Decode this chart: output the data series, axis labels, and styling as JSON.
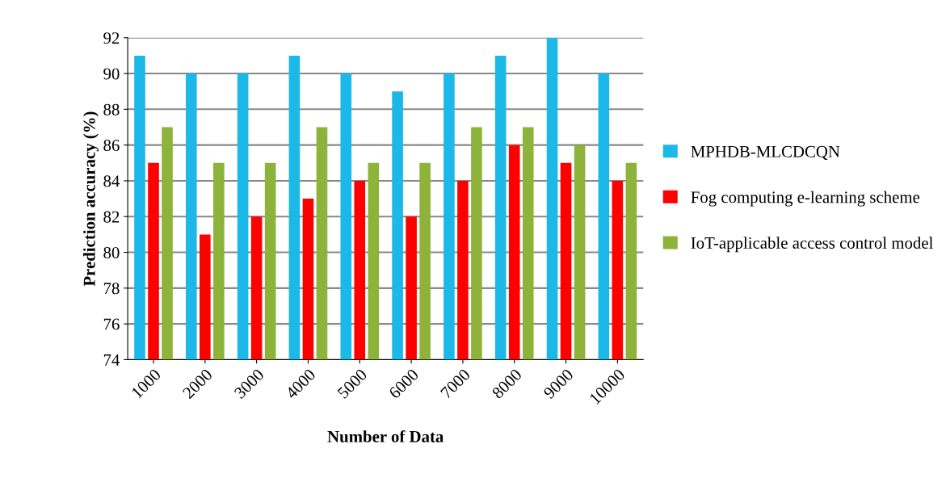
{
  "chart_data": {
    "type": "bar",
    "xlabel": "Number of Data",
    "ylabel": "Prediction accuracy (%)",
    "categories": [
      "1000",
      "2000",
      "3000",
      "4000",
      "5000",
      "6000",
      "7000",
      "8000",
      "9000",
      "10000"
    ],
    "series": [
      {
        "name": "MPHDB-MLCDCQN",
        "color": "#1cb8e8",
        "values": [
          91,
          90,
          90,
          91,
          90,
          89,
          90,
          91,
          92,
          90
        ]
      },
      {
        "name": "Fog computing e-learning scheme",
        "color": "#ff0000",
        "values": [
          85,
          81,
          82,
          83,
          84,
          82,
          84,
          86,
          85,
          84
        ]
      },
      {
        "name": "IoT-applicable access control model",
        "color": "#8db33a",
        "values": [
          87,
          85,
          85,
          87,
          85,
          85,
          87,
          87,
          86,
          85
        ]
      }
    ],
    "ylim": [
      74,
      92
    ],
    "yticks": [
      74,
      76,
      78,
      80,
      82,
      84,
      86,
      88,
      90,
      92
    ],
    "grid": "y",
    "legend": "right"
  }
}
